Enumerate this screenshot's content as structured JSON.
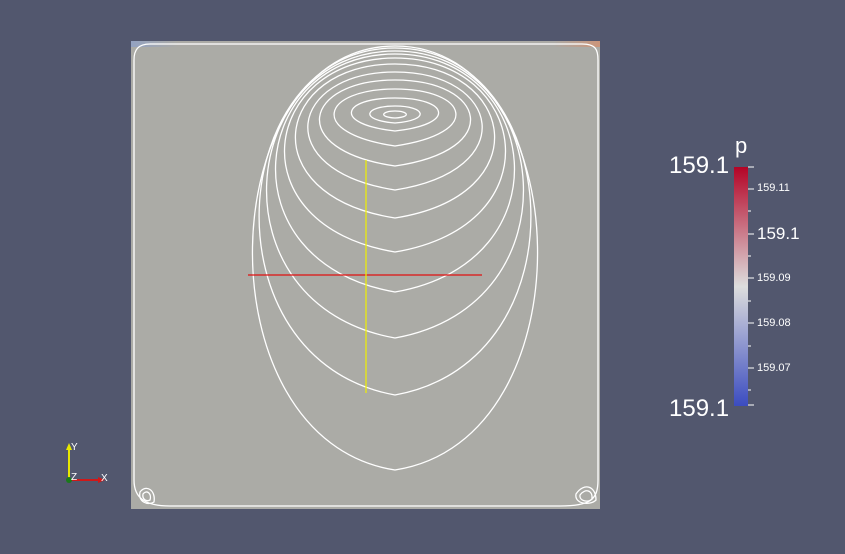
{
  "colorbar": {
    "title": "p",
    "range_min_label": "159.1",
    "range_max_label": "159.1",
    "tick_labels": [
      "159.11",
      "159.1",
      "159.09",
      "159.08",
      "159.07"
    ],
    "colors": {
      "low": "#3b4cc0",
      "mid": "#dddddd",
      "high": "#b40426"
    }
  },
  "axes": {
    "x_label": "X",
    "y_label": "Y",
    "z_label": "Z"
  },
  "scene": {
    "background": "#52576e",
    "domain_fill": "#ababa6",
    "streamline_color": "#ffffff",
    "probe_line_horizontal_color": "#e01010",
    "probe_line_vertical_color": "#f0f000"
  }
}
